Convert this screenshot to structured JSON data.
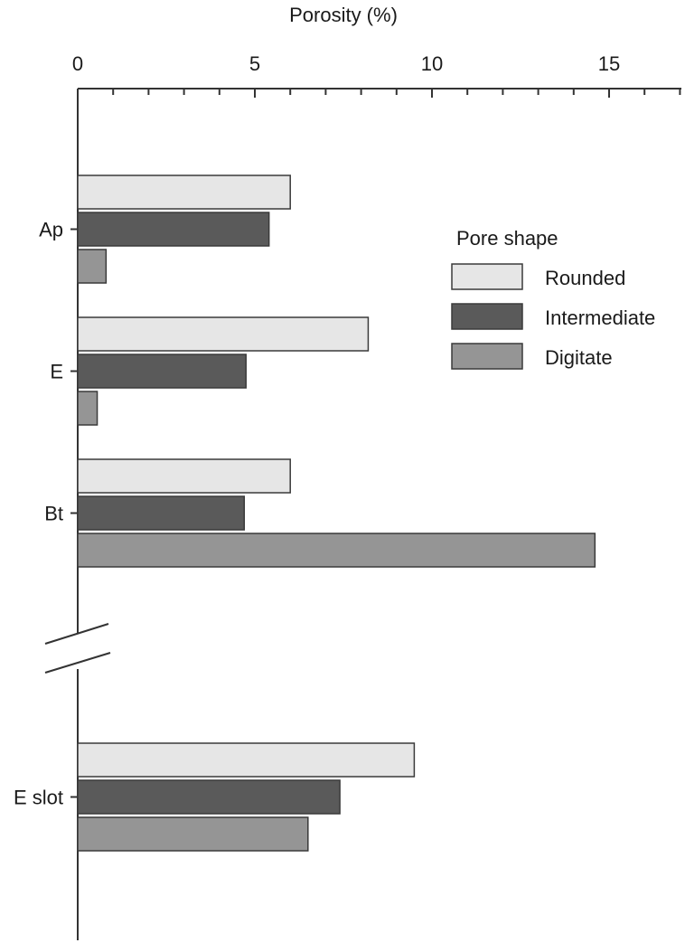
{
  "chart_data": {
    "type": "bar",
    "orientation": "horizontal",
    "xlabel": "Porosity (%)",
    "xlim": [
      0,
      17
    ],
    "x_ticks": [
      "0",
      "5",
      "10",
      "15"
    ],
    "x_tick_values": [
      0,
      5,
      10,
      15
    ],
    "categories": [
      "Ap",
      "E",
      "Bt",
      "E slot"
    ],
    "axis_break": "between Bt and E slot",
    "grid": false,
    "legend": {
      "title": "Pore shape",
      "placement": "right"
    },
    "series": [
      {
        "name": "Rounded",
        "color": "#e6e6e6",
        "values": [
          6.0,
          8.2,
          6.0,
          9.5
        ]
      },
      {
        "name": "Intermediate",
        "color": "#5a5a5a",
        "values": [
          5.4,
          4.75,
          4.7,
          7.4
        ]
      },
      {
        "name": "Digitate",
        "color": "#959595",
        "values": [
          0.8,
          0.55,
          14.6,
          6.5
        ]
      }
    ]
  }
}
